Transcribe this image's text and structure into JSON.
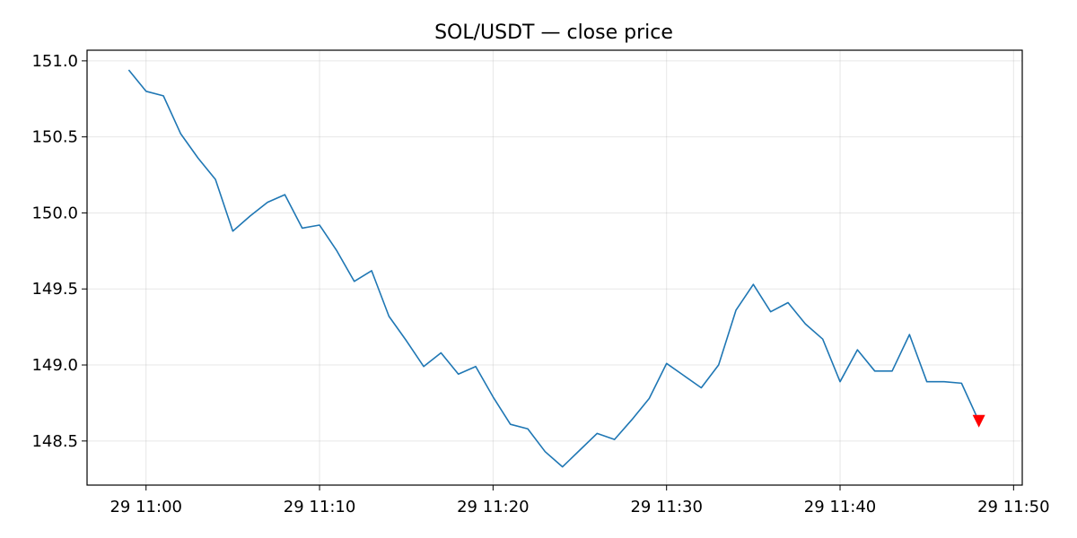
{
  "chart_data": {
    "type": "line",
    "title": "SOL/USDT — close price",
    "xlabel": "",
    "ylabel": "",
    "x_tick_labels": [
      "29 11:00",
      "29 11:10",
      "29 11:20",
      "29 11:30",
      "29 11:40",
      "29 11:50"
    ],
    "x_tick_minutes": [
      0,
      10,
      20,
      30,
      40,
      50
    ],
    "xlim_minutes": [
      -3.4,
      50.5
    ],
    "y_ticks": [
      148.5,
      149.0,
      149.5,
      150.0,
      150.5,
      151.0
    ],
    "y_tick_labels": [
      "148.5",
      "149.0",
      "149.5",
      "150.0",
      "150.5",
      "151.0"
    ],
    "ylim": [
      148.21,
      151.07
    ],
    "grid": true,
    "series": [
      {
        "x_minutes": [
          -1,
          0,
          1,
          2,
          3,
          4,
          5,
          6,
          7,
          8,
          9,
          10,
          11,
          12,
          13,
          14,
          15,
          16,
          17,
          18,
          19,
          20,
          21,
          22,
          23,
          24,
          25,
          26,
          27,
          28,
          29,
          30,
          31,
          32,
          33,
          34,
          35,
          36,
          37,
          38,
          39,
          40,
          41,
          42,
          43,
          44,
          45,
          46,
          47,
          48
        ],
        "values": [
          150.94,
          150.8,
          150.77,
          150.52,
          150.36,
          150.22,
          149.88,
          149.98,
          150.07,
          150.12,
          149.9,
          149.92,
          149.75,
          149.55,
          149.62,
          149.32,
          149.16,
          148.99,
          149.08,
          148.94,
          148.99,
          148.79,
          148.61,
          148.58,
          148.43,
          148.33,
          148.44,
          148.55,
          148.51,
          148.64,
          148.78,
          149.01,
          148.93,
          148.85,
          149.0,
          149.36,
          149.53,
          149.35,
          149.41,
          149.27,
          149.17,
          148.89,
          149.1,
          148.96,
          148.96,
          149.2,
          148.89,
          148.89,
          148.88,
          148.63
        ],
        "color": "#1f77b4"
      }
    ],
    "marker": {
      "x_minute": 48,
      "value": 148.63,
      "shape": "triangle-down",
      "color": "#ff0000"
    }
  }
}
